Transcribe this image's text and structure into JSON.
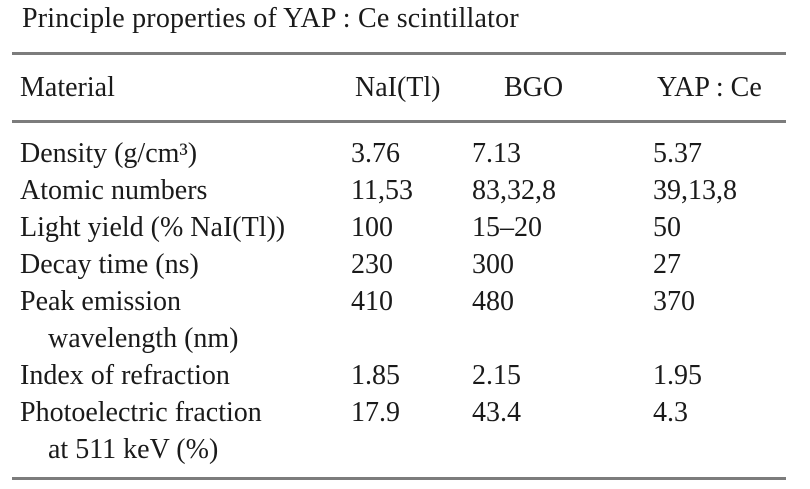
{
  "page": {
    "title": "Principle properties of YAP : Ce scintillator"
  },
  "table": {
    "headers": [
      "Material",
      "NaI(Tl)",
      "BGO",
      "YAP : Ce"
    ],
    "rows": [
      {
        "label": "Density (g/cm³)",
        "values": [
          "3.76",
          "7.13",
          "5.37"
        ]
      },
      {
        "label": "Atomic numbers",
        "values": [
          "11,53",
          "83,32,8",
          "39,13,8"
        ]
      },
      {
        "label": "Light yield (% NaI(Tl))",
        "values": [
          "100",
          "15–20",
          "50"
        ]
      },
      {
        "label": "Decay time (ns)",
        "values": [
          "230",
          "300",
          "27"
        ]
      },
      {
        "label": "Peak emission",
        "label_cont": "wavelength (nm)",
        "values": [
          "410",
          "480",
          "370"
        ]
      },
      {
        "label": "Index of refraction",
        "values": [
          "1.85",
          "2.15",
          "1.95"
        ]
      },
      {
        "label": "Photoelectric fraction",
        "label_cont": "at 511 keV (%)",
        "values": [
          "17.9",
          "43.4",
          "4.3"
        ]
      }
    ]
  },
  "colors": {
    "text": "#1a1a1a",
    "rule": "#7c7c7c",
    "background": "#ffffff"
  }
}
